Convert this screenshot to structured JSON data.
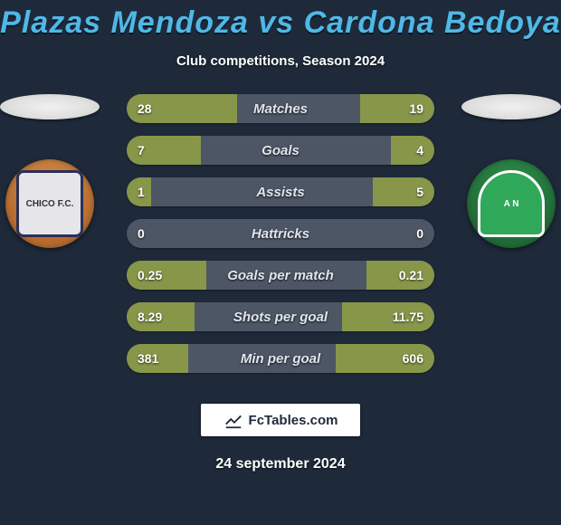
{
  "background_color": "#1e2a3a",
  "title": {
    "text": "Plazas Mendoza vs Cardona Bedoya",
    "color": "#4fb8e6",
    "fontsize": 34
  },
  "subtitle": {
    "text": "Club competitions, Season 2024",
    "color": "#ffffff",
    "fontsize": 15
  },
  "players": {
    "left": {
      "club_badge_bg": "#b56a2e",
      "club_inner_bg": "#e6e6ea",
      "club_border": "#2a2f5a",
      "club_label": "CHICO F.C."
    },
    "right": {
      "club_badge_bg": "#206a37",
      "club_inner_bg": "#2fa85a",
      "club_border": "#ffffff",
      "club_label": "A N"
    }
  },
  "stats": {
    "bar_bg": "#4d5664",
    "bar_fill": "#879648",
    "label_color": "#dfe6ee",
    "value_color": "#ffffff",
    "rows": [
      {
        "label": "Matches",
        "left": "28",
        "right": "19",
        "lpct": 36,
        "rpct": 24
      },
      {
        "label": "Goals",
        "left": "7",
        "right": "4",
        "lpct": 24,
        "rpct": 14
      },
      {
        "label": "Assists",
        "left": "1",
        "right": "5",
        "lpct": 8,
        "rpct": 20
      },
      {
        "label": "Hattricks",
        "left": "0",
        "right": "0",
        "lpct": 0,
        "rpct": 0
      },
      {
        "label": "Goals per match",
        "left": "0.25",
        "right": "0.21",
        "lpct": 26,
        "rpct": 22
      },
      {
        "label": "Shots per goal",
        "left": "8.29",
        "right": "11.75",
        "lpct": 22,
        "rpct": 30
      },
      {
        "label": "Min per goal",
        "left": "381",
        "right": "606",
        "lpct": 20,
        "rpct": 32
      }
    ]
  },
  "footer": {
    "brand": "FcTables.com",
    "date": "24 september 2024"
  }
}
